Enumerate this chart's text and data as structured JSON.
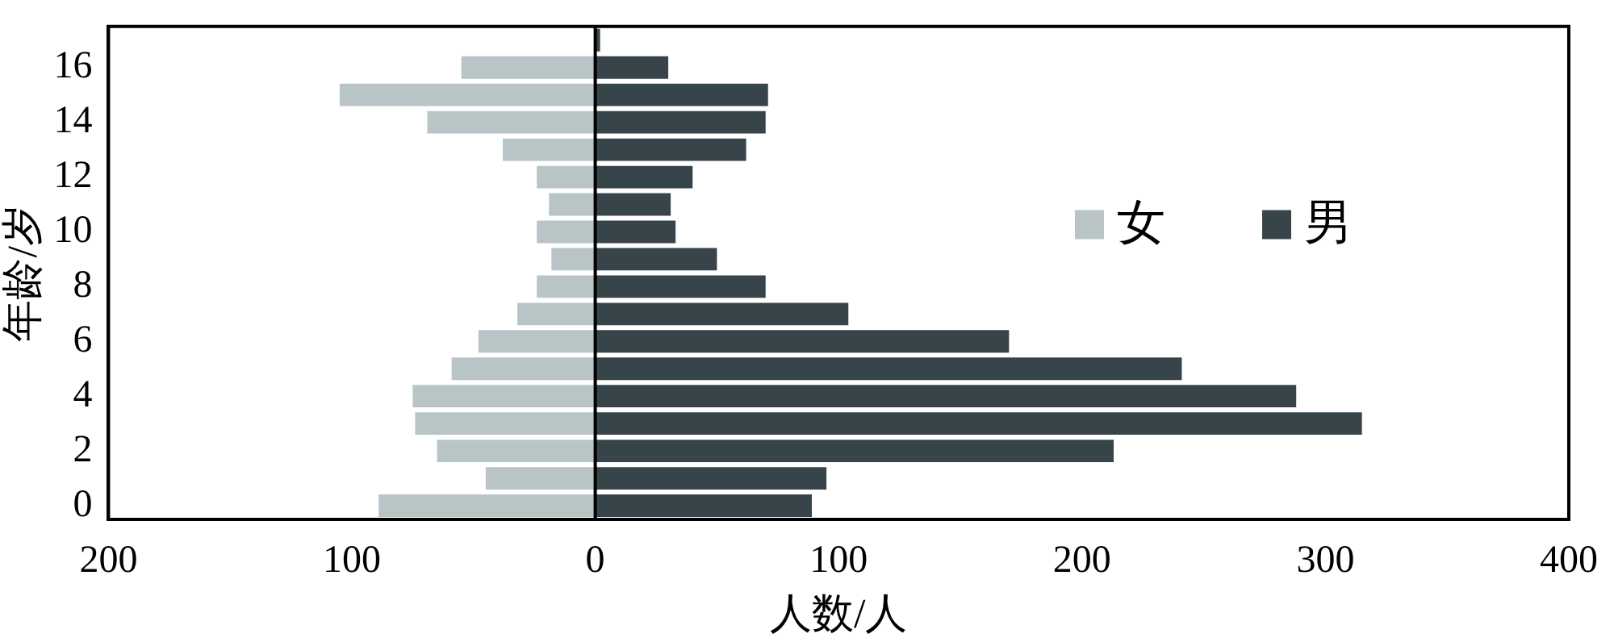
{
  "chart_data": {
    "type": "bar",
    "orientation": "horizontal",
    "stacked": true,
    "xlabel": "人数/人",
    "ylabel": "年龄/岁",
    "categories": [
      null,
      "16",
      null,
      "14",
      null,
      "12",
      null,
      "10",
      null,
      "8",
      null,
      "6",
      null,
      "4",
      null,
      "2",
      null,
      "0"
    ],
    "series": [
      {
        "name": "女",
        "color": "#b8c4c6",
        "values": [
          0,
          -55,
          -105,
          -69,
          -38,
          -24,
          -19,
          -24,
          -18,
          -24,
          -32,
          -48,
          -59,
          -75,
          -74,
          -65,
          -45,
          -89
        ]
      },
      {
        "name": "男",
        "color": "#37454b",
        "values": [
          2,
          30,
          71,
          70,
          62,
          40,
          31,
          33,
          50,
          70,
          104,
          170,
          241,
          288,
          315,
          213,
          95,
          89
        ]
      }
    ],
    "xlim": [
      -200,
      400
    ],
    "xticks": [
      {
        "value": -200,
        "label": "200"
      },
      {
        "value": -100,
        "label": "100"
      },
      0,
      100,
      200,
      300,
      400
    ],
    "ref_lines": [
      {
        "axis": "x",
        "value": 0,
        "color": "#000000"
      }
    ],
    "grid": false,
    "legend": "right"
  }
}
